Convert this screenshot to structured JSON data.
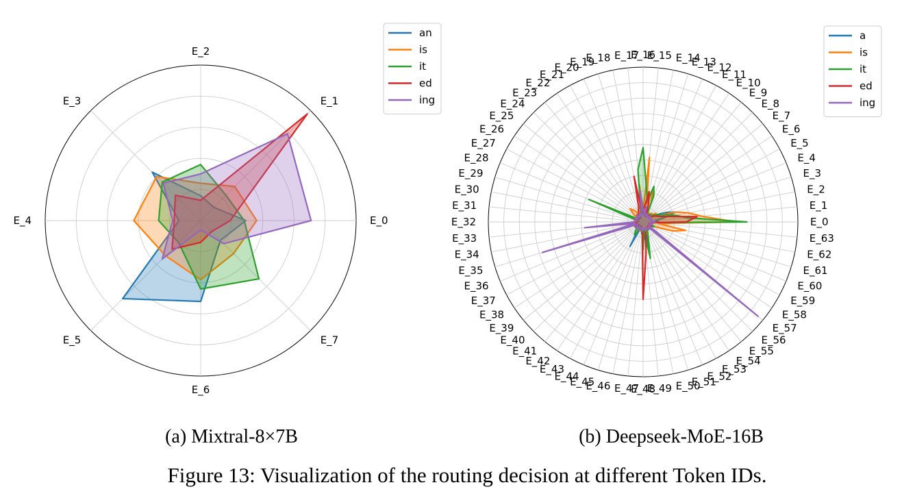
{
  "colors": {
    "blue": "#1f77b4",
    "orange": "#ff7f0e",
    "green": "#2ca02c",
    "red": "#d62728",
    "purple": "#9467bd",
    "grid": "#cccccc"
  },
  "figure_caption": "Figure 13: Visualization of the routing decision at different Token IDs.",
  "chart_data": [
    {
      "type": "radar",
      "subcaption": "(a) Mixtral-8×7B",
      "categories": [
        "E_0",
        "E_1",
        "E_2",
        "E_3",
        "E_4",
        "E_5",
        "E_6",
        "E_7"
      ],
      "r_max": 1.0,
      "r_gridlines": [
        0.2,
        0.4,
        0.6,
        0.8,
        1.0
      ],
      "legend_position": "top-right",
      "series": [
        {
          "name": "an",
          "color": "#1f77b4",
          "values": [
            0.29,
            0.12,
            0.16,
            0.44,
            0.14,
            0.71,
            0.52,
            0.18
          ]
        },
        {
          "name": "is",
          "color": "#ff7f0e",
          "values": [
            0.36,
            0.31,
            0.24,
            0.4,
            0.43,
            0.32,
            0.38,
            0.3
          ]
        },
        {
          "name": "it",
          "color": "#2ca02c",
          "values": [
            0.28,
            0.23,
            0.36,
            0.35,
            0.27,
            0.2,
            0.44,
            0.53
          ]
        },
        {
          "name": "ed",
          "color": "#d62728",
          "values": [
            0.19,
            0.97,
            0.13,
            0.23,
            0.17,
            0.26,
            0.14,
            0.1
          ]
        },
        {
          "name": "ing",
          "color": "#9467bd",
          "values": [
            0.71,
            0.79,
            0.3,
            0.34,
            0.18,
            0.35,
            0.06,
            0.21
          ]
        }
      ]
    },
    {
      "type": "radar",
      "subcaption": "(b) Deepseek-MoE-16B",
      "categories": [
        "E_0",
        "E_1",
        "E_2",
        "E_3",
        "E_4",
        "E_5",
        "E_6",
        "E_7",
        "E_8",
        "E_9",
        "E_10",
        "E_11",
        "E_12",
        "E_13",
        "E_14",
        "E_15",
        "E_16",
        "E_17",
        "E_18",
        "E_19",
        "E_20",
        "E_21",
        "E_22",
        "E_23",
        "E_24",
        "E_25",
        "E_26",
        "E_27",
        "E_28",
        "E_29",
        "E_30",
        "E_31",
        "E_32",
        "E_33",
        "E_34",
        "E_35",
        "E_36",
        "E_37",
        "E_38",
        "E_39",
        "E_40",
        "E_41",
        "E_42",
        "E_43",
        "E_44",
        "E_45",
        "E_46",
        "E_47",
        "E_48",
        "E_49",
        "E_50",
        "E_51",
        "E_52",
        "E_53",
        "E_54",
        "E_55",
        "E_56",
        "E_57",
        "E_58",
        "E_59",
        "E_60",
        "E_61",
        "E_62",
        "E_63"
      ],
      "r_max": 1.0,
      "r_gridlines": [
        0.1,
        0.2,
        0.3,
        0.4,
        0.5,
        0.6,
        0.7,
        0.8,
        0.9,
        1.0
      ],
      "legend_position": "top-right",
      "series": [
        {
          "name": "a",
          "color": "#1f77b4",
          "values": [
            0.1,
            0.08,
            0.14,
            0.22,
            0.16,
            0.1,
            0.08,
            0.06,
            0.05,
            0.06,
            0.05,
            0.04,
            0.06,
            0.07,
            0.04,
            0.05,
            0.08,
            0.07,
            0.05,
            0.04,
            0.04,
            0.03,
            0.04,
            0.03,
            0.04,
            0.03,
            0.04,
            0.05,
            0.03,
            0.04,
            0.05,
            0.03,
            0.04,
            0.06,
            0.05,
            0.04,
            0.05,
            0.04,
            0.03,
            0.04,
            0.04,
            0.03,
            0.05,
            0.18,
            0.04,
            0.03,
            0.05,
            0.08,
            0.06,
            0.1,
            0.2,
            0.06,
            0.05,
            0.04,
            0.06,
            0.05,
            0.04,
            0.05,
            0.06,
            0.04,
            0.05,
            0.06,
            0.05,
            0.04
          ]
        },
        {
          "name": "is",
          "color": "#ff7f0e",
          "values": [
            0.6,
            0.38,
            0.3,
            0.22,
            0.12,
            0.08,
            0.1,
            0.07,
            0.08,
            0.06,
            0.07,
            0.06,
            0.14,
            0.22,
            0.12,
            0.42,
            0.08,
            0.24,
            0.1,
            0.06,
            0.05,
            0.05,
            0.08,
            0.1,
            0.12,
            0.08,
            0.05,
            0.04,
            0.05,
            0.04,
            0.05,
            0.04,
            0.06,
            0.08,
            0.05,
            0.04,
            0.05,
            0.04,
            0.06,
            0.05,
            0.06,
            0.04,
            0.05,
            0.05,
            0.04,
            0.06,
            0.04,
            0.05,
            0.06,
            0.04,
            0.05,
            0.08,
            0.06,
            0.05,
            0.04,
            0.06,
            0.05,
            0.04,
            0.05,
            0.06,
            0.08,
            0.2,
            0.28,
            0.1
          ]
        },
        {
          "name": "it",
          "color": "#2ca02c",
          "values": [
            0.67,
            0.28,
            0.22,
            0.16,
            0.12,
            0.1,
            0.08,
            0.06,
            0.07,
            0.05,
            0.06,
            0.05,
            0.18,
            0.24,
            0.14,
            0.22,
            0.48,
            0.34,
            0.08,
            0.06,
            0.05,
            0.06,
            0.05,
            0.04,
            0.06,
            0.05,
            0.04,
            0.05,
            0.38,
            0.06,
            0.05,
            0.04,
            0.05,
            0.06,
            0.05,
            0.04,
            0.05,
            0.06,
            0.05,
            0.04,
            0.06,
            0.08,
            0.1,
            0.06,
            0.05,
            0.04,
            0.06,
            0.05,
            0.18,
            0.06,
            0.24,
            0.12,
            0.08,
            0.06,
            0.05,
            0.06,
            0.05,
            0.04,
            0.05,
            0.06,
            0.08,
            0.05,
            0.06,
            0.05
          ]
        },
        {
          "name": "ed",
          "color": "#d62728",
          "values": [
            0.28,
            0.35,
            0.18,
            0.12,
            0.1,
            0.08,
            0.06,
            0.05,
            0.06,
            0.05,
            0.04,
            0.05,
            0.06,
            0.12,
            0.2,
            0.1,
            0.08,
            0.06,
            0.3,
            0.1,
            0.08,
            0.06,
            0.05,
            0.06,
            0.05,
            0.04,
            0.05,
            0.04,
            0.05,
            0.06,
            0.05,
            0.04,
            0.05,
            0.04,
            0.06,
            0.05,
            0.04,
            0.05,
            0.06,
            0.04,
            0.05,
            0.04,
            0.05,
            0.06,
            0.05,
            0.04,
            0.05,
            0.06,
            0.5,
            0.2,
            0.08,
            0.06,
            0.05,
            0.04,
            0.05,
            0.06,
            0.05,
            0.04,
            0.05,
            0.06,
            0.05,
            0.04,
            0.06,
            0.05
          ]
        },
        {
          "name": "ing",
          "color": "#9467bd",
          "values": [
            0.08,
            0.06,
            0.05,
            0.06,
            0.05,
            0.04,
            0.05,
            0.06,
            0.05,
            0.04,
            0.05,
            0.06,
            0.05,
            0.04,
            0.1,
            0.06,
            0.08,
            0.2,
            0.05,
            0.04,
            0.06,
            0.05,
            0.04,
            0.05,
            0.06,
            0.05,
            0.04,
            0.05,
            0.06,
            0.05,
            0.04,
            0.05,
            0.06,
            0.38,
            0.05,
            0.68,
            0.05,
            0.04,
            0.05,
            0.06,
            0.05,
            0.04,
            0.05,
            0.06,
            0.05,
            0.04,
            0.05,
            0.06,
            0.05,
            0.04,
            0.05,
            0.06,
            0.05,
            0.04,
            0.05,
            0.06,
            0.05,
            0.96,
            0.05,
            0.04,
            0.05,
            0.06,
            0.05,
            0.04
          ]
        }
      ]
    }
  ]
}
